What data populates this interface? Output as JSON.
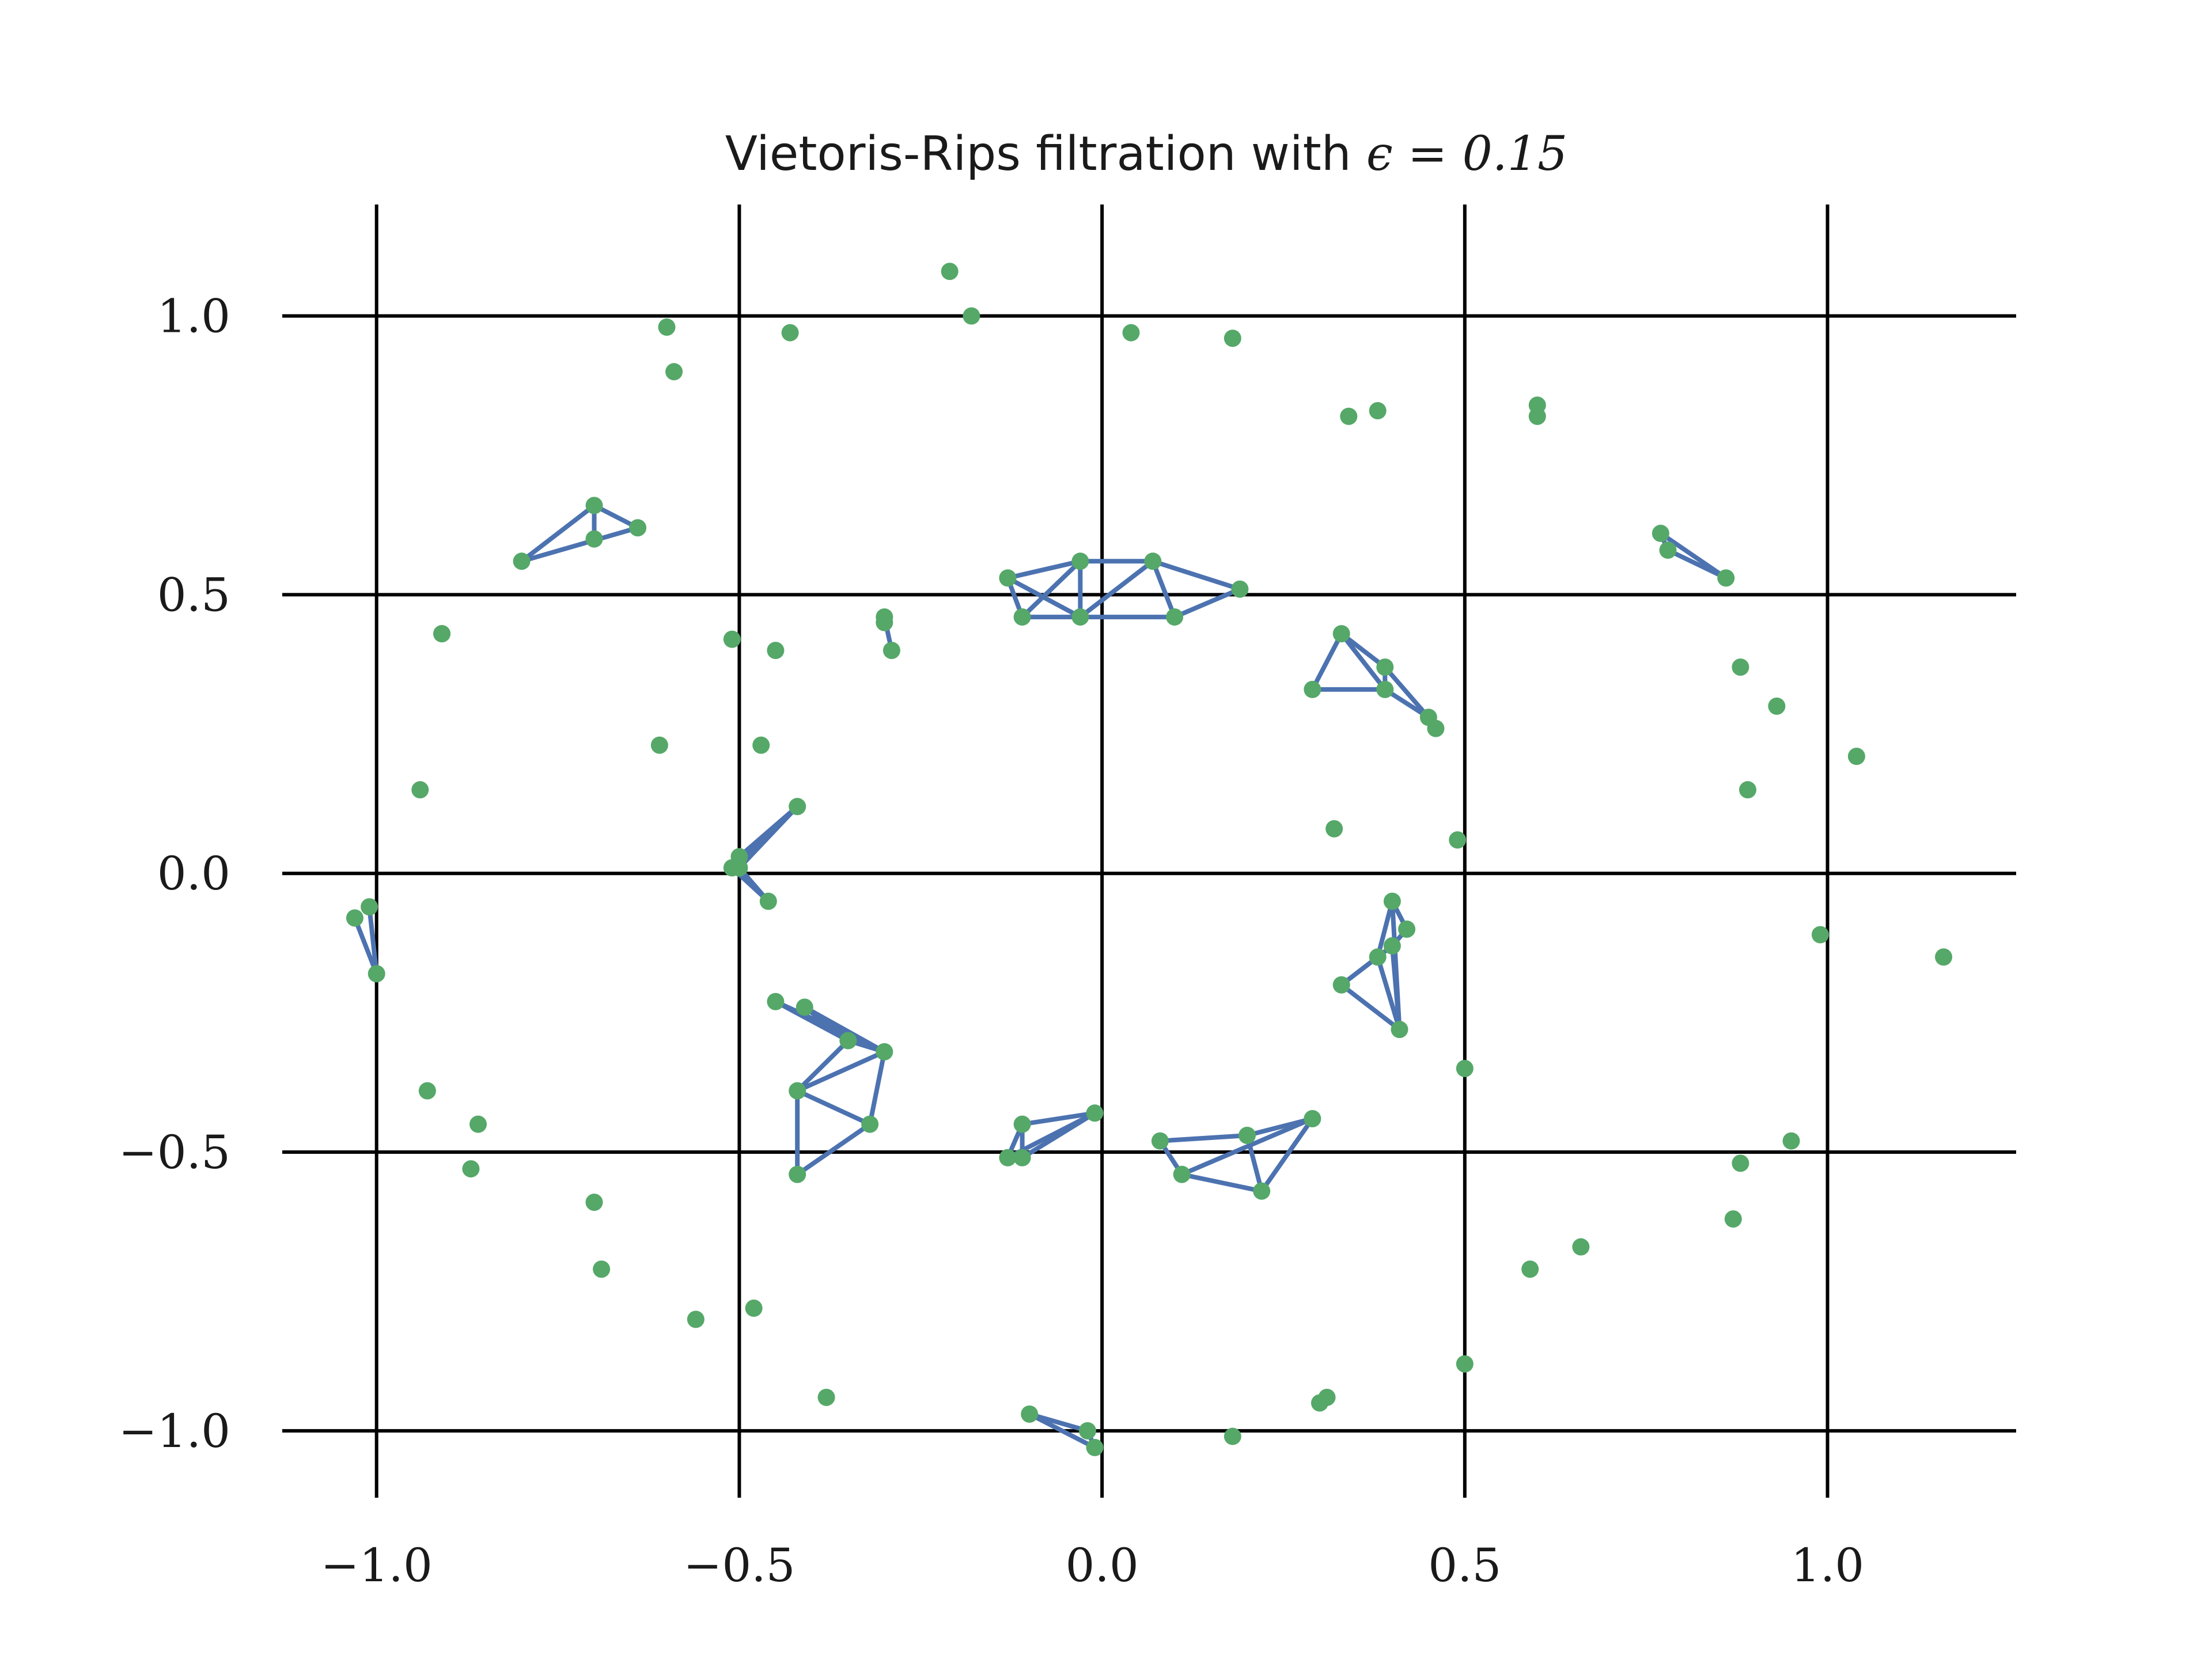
{
  "chart_data": {
    "type": "scatter",
    "title": "Vietoris-Rips filtration with ",
    "title_math": "ϵ = 0.15",
    "xlabel": "",
    "ylabel": "",
    "xlim": [
      -1.13,
      1.26
    ],
    "ylim": [
      -1.12,
      1.2
    ],
    "xticks": [
      -1.0,
      -0.5,
      0.0,
      0.5,
      1.0
    ],
    "yticks": [
      -1.0,
      -0.5,
      0.0,
      0.5,
      1.0
    ],
    "xtick_labels": [
      "−1.0",
      "−0.5",
      "0.0",
      "0.5",
      "1.0"
    ],
    "ytick_labels": [
      "−1.0",
      "−0.5",
      "0.0",
      "0.5",
      "1.0"
    ],
    "grid": true,
    "point_color": "#55a868",
    "edge_color": "#4c72b0",
    "points": [
      [
        -0.21,
        1.08
      ],
      [
        -0.18,
        1.0
      ],
      [
        -0.6,
        0.98
      ],
      [
        -0.59,
        0.9
      ],
      [
        -0.43,
        0.97
      ],
      [
        0.04,
        0.97
      ],
      [
        0.18,
        0.96
      ],
      [
        0.34,
        0.82
      ],
      [
        0.38,
        0.83
      ],
      [
        0.6,
        0.84
      ],
      [
        0.6,
        0.82
      ],
      [
        -0.7,
        0.66
      ],
      [
        -0.64,
        0.62
      ],
      [
        -0.7,
        0.6
      ],
      [
        -0.8,
        0.56
      ],
      [
        -0.13,
        0.53
      ],
      [
        -0.03,
        0.56
      ],
      [
        0.07,
        0.56
      ],
      [
        0.19,
        0.51
      ],
      [
        -0.11,
        0.46
      ],
      [
        -0.03,
        0.46
      ],
      [
        0.1,
        0.46
      ],
      [
        0.77,
        0.61
      ],
      [
        0.78,
        0.58
      ],
      [
        0.86,
        0.53
      ],
      [
        -0.3,
        0.46
      ],
      [
        -0.3,
        0.45
      ],
      [
        -0.29,
        0.4
      ],
      [
        -0.91,
        0.43
      ],
      [
        -0.91,
        0.43
      ],
      [
        -0.51,
        0.42
      ],
      [
        -0.45,
        0.4
      ],
      [
        0.33,
        0.43
      ],
      [
        0.39,
        0.37
      ],
      [
        0.29,
        0.33
      ],
      [
        0.39,
        0.33
      ],
      [
        0.45,
        0.28
      ],
      [
        0.46,
        0.26
      ],
      [
        0.88,
        0.37
      ],
      [
        0.93,
        0.3
      ],
      [
        1.04,
        0.21
      ],
      [
        0.89,
        0.15
      ],
      [
        -0.61,
        0.23
      ],
      [
        -0.47,
        0.23
      ],
      [
        -0.94,
        0.15
      ],
      [
        -0.42,
        0.12
      ],
      [
        -0.5,
        0.03
      ],
      [
        -0.5,
        0.01
      ],
      [
        -0.51,
        0.01
      ],
      [
        -0.46,
        -0.05
      ],
      [
        0.32,
        0.08
      ],
      [
        0.49,
        0.06
      ],
      [
        -1.03,
        -0.08
      ],
      [
        -1.01,
        -0.06
      ],
      [
        -1.0,
        -0.18
      ],
      [
        0.4,
        -0.05
      ],
      [
        0.42,
        -0.1
      ],
      [
        0.4,
        -0.13
      ],
      [
        0.38,
        -0.15
      ],
      [
        0.33,
        -0.2
      ],
      [
        0.41,
        -0.28
      ],
      [
        0.99,
        -0.11
      ],
      [
        1.16,
        -0.15
      ],
      [
        -0.45,
        -0.23
      ],
      [
        -0.41,
        -0.24
      ],
      [
        -0.35,
        -0.3
      ],
      [
        -0.3,
        -0.32
      ],
      [
        -0.42,
        -0.39
      ],
      [
        -0.32,
        -0.45
      ],
      [
        -0.42,
        -0.54
      ],
      [
        0.5,
        -0.35
      ],
      [
        -0.93,
        -0.39
      ],
      [
        -0.86,
        -0.45
      ],
      [
        -0.87,
        -0.53
      ],
      [
        -0.11,
        -0.45
      ],
      [
        -0.01,
        -0.43
      ],
      [
        -0.13,
        -0.51
      ],
      [
        -0.11,
        -0.51
      ],
      [
        0.08,
        -0.48
      ],
      [
        0.2,
        -0.47
      ],
      [
        0.29,
        -0.44
      ],
      [
        0.11,
        -0.54
      ],
      [
        0.22,
        -0.57
      ],
      [
        0.95,
        -0.48
      ],
      [
        0.88,
        -0.52
      ],
      [
        0.87,
        -0.62
      ],
      [
        -0.7,
        -0.59
      ],
      [
        -0.69,
        -0.71
      ],
      [
        -0.56,
        -0.8
      ],
      [
        -0.48,
        -0.78
      ],
      [
        0.66,
        -0.67
      ],
      [
        0.59,
        -0.71
      ],
      [
        0.5,
        -0.88
      ],
      [
        -0.38,
        -0.94
      ],
      [
        0.3,
        -0.95
      ],
      [
        0.31,
        -0.94
      ],
      [
        -0.1,
        -0.97
      ],
      [
        -0.02,
        -1.0
      ],
      [
        -0.01,
        -1.03
      ],
      [
        0.18,
        -1.01
      ]
    ],
    "edges": [
      [
        [
          -0.8,
          0.56
        ],
        [
          -0.7,
          0.66
        ]
      ],
      [
        [
          -0.8,
          0.56
        ],
        [
          -0.64,
          0.62
        ]
      ],
      [
        [
          -0.7,
          0.66
        ],
        [
          -0.64,
          0.62
        ]
      ],
      [
        [
          -0.7,
          0.66
        ],
        [
          -0.7,
          0.6
        ]
      ],
      [
        [
          -0.13,
          0.53
        ],
        [
          -0.03,
          0.56
        ]
      ],
      [
        [
          -0.13,
          0.53
        ],
        [
          -0.11,
          0.46
        ]
      ],
      [
        [
          -0.13,
          0.53
        ],
        [
          -0.03,
          0.46
        ]
      ],
      [
        [
          -0.03,
          0.56
        ],
        [
          0.07,
          0.56
        ]
      ],
      [
        [
          -0.03,
          0.56
        ],
        [
          -0.03,
          0.46
        ]
      ],
      [
        [
          -0.03,
          0.56
        ],
        [
          -0.11,
          0.46
        ]
      ],
      [
        [
          0.07,
          0.56
        ],
        [
          0.19,
          0.51
        ]
      ],
      [
        [
          0.07,
          0.56
        ],
        [
          -0.03,
          0.46
        ]
      ],
      [
        [
          0.07,
          0.56
        ],
        [
          0.1,
          0.46
        ]
      ],
      [
        [
          0.19,
          0.51
        ],
        [
          0.1,
          0.46
        ]
      ],
      [
        [
          -0.11,
          0.46
        ],
        [
          -0.03,
          0.46
        ]
      ],
      [
        [
          -0.03,
          0.46
        ],
        [
          0.1,
          0.46
        ]
      ],
      [
        [
          0.77,
          0.61
        ],
        [
          0.86,
          0.53
        ]
      ],
      [
        [
          0.78,
          0.58
        ],
        [
          0.86,
          0.53
        ]
      ],
      [
        [
          0.77,
          0.61
        ],
        [
          0.78,
          0.58
        ]
      ],
      [
        [
          -0.3,
          0.46
        ],
        [
          -0.29,
          0.4
        ]
      ],
      [
        [
          0.33,
          0.43
        ],
        [
          0.29,
          0.33
        ]
      ],
      [
        [
          0.33,
          0.43
        ],
        [
          0.39,
          0.37
        ]
      ],
      [
        [
          0.33,
          0.43
        ],
        [
          0.39,
          0.33
        ]
      ],
      [
        [
          0.29,
          0.33
        ],
        [
          0.39,
          0.33
        ]
      ],
      [
        [
          0.39,
          0.37
        ],
        [
          0.39,
          0.33
        ]
      ],
      [
        [
          0.39,
          0.37
        ],
        [
          0.45,
          0.28
        ]
      ],
      [
        [
          0.39,
          0.33
        ],
        [
          0.45,
          0.28
        ]
      ],
      [
        [
          0.45,
          0.28
        ],
        [
          0.46,
          0.26
        ]
      ],
      [
        [
          -0.42,
          0.12
        ],
        [
          -0.5,
          0.03
        ]
      ],
      [
        [
          -0.42,
          0.12
        ],
        [
          -0.5,
          0.01
        ]
      ],
      [
        [
          -0.42,
          0.12
        ],
        [
          -0.51,
          0.01
        ]
      ],
      [
        [
          -0.5,
          0.03
        ],
        [
          -0.51,
          0.01
        ]
      ],
      [
        [
          -0.5,
          0.01
        ],
        [
          -0.46,
          -0.05
        ]
      ],
      [
        [
          -0.51,
          0.01
        ],
        [
          -0.46,
          -0.05
        ]
      ],
      [
        [
          -1.03,
          -0.08
        ],
        [
          -1.0,
          -0.18
        ]
      ],
      [
        [
          -1.01,
          -0.06
        ],
        [
          -1.0,
          -0.18
        ]
      ],
      [
        [
          0.4,
          -0.05
        ],
        [
          0.42,
          -0.1
        ]
      ],
      [
        [
          0.4,
          -0.05
        ],
        [
          0.38,
          -0.15
        ]
      ],
      [
        [
          0.4,
          -0.05
        ],
        [
          0.41,
          -0.28
        ]
      ],
      [
        [
          0.42,
          -0.1
        ],
        [
          0.4,
          -0.13
        ]
      ],
      [
        [
          0.4,
          -0.13
        ],
        [
          0.38,
          -0.15
        ]
      ],
      [
        [
          0.4,
          -0.13
        ],
        [
          0.41,
          -0.28
        ]
      ],
      [
        [
          0.38,
          -0.15
        ],
        [
          0.33,
          -0.2
        ]
      ],
      [
        [
          0.33,
          -0.2
        ],
        [
          0.41,
          -0.28
        ]
      ],
      [
        [
          0.4,
          -0.13
        ],
        [
          0.33,
          -0.2
        ]
      ],
      [
        [
          0.38,
          -0.15
        ],
        [
          0.41,
          -0.28
        ]
      ],
      [
        [
          -0.45,
          -0.23
        ],
        [
          -0.35,
          -0.3
        ]
      ],
      [
        [
          -0.45,
          -0.23
        ],
        [
          -0.3,
          -0.32
        ]
      ],
      [
        [
          -0.41,
          -0.24
        ],
        [
          -0.3,
          -0.32
        ]
      ],
      [
        [
          -0.41,
          -0.24
        ],
        [
          -0.35,
          -0.3
        ]
      ],
      [
        [
          -0.35,
          -0.3
        ],
        [
          -0.3,
          -0.32
        ]
      ],
      [
        [
          -0.35,
          -0.3
        ],
        [
          -0.42,
          -0.39
        ]
      ],
      [
        [
          -0.3,
          -0.32
        ],
        [
          -0.42,
          -0.39
        ]
      ],
      [
        [
          -0.3,
          -0.32
        ],
        [
          -0.32,
          -0.45
        ]
      ],
      [
        [
          -0.42,
          -0.39
        ],
        [
          -0.32,
          -0.45
        ]
      ],
      [
        [
          -0.42,
          -0.39
        ],
        [
          -0.42,
          -0.54
        ]
      ],
      [
        [
          -0.32,
          -0.45
        ],
        [
          -0.42,
          -0.54
        ]
      ],
      [
        [
          -0.11,
          -0.45
        ],
        [
          -0.01,
          -0.43
        ]
      ],
      [
        [
          -0.11,
          -0.45
        ],
        [
          -0.13,
          -0.51
        ]
      ],
      [
        [
          -0.11,
          -0.45
        ],
        [
          -0.11,
          -0.51
        ]
      ],
      [
        [
          -0.01,
          -0.43
        ],
        [
          -0.13,
          -0.51
        ]
      ],
      [
        [
          -0.01,
          -0.43
        ],
        [
          -0.11,
          -0.51
        ]
      ],
      [
        [
          -0.13,
          -0.51
        ],
        [
          -0.11,
          -0.51
        ]
      ],
      [
        [
          0.08,
          -0.48
        ],
        [
          0.2,
          -0.47
        ]
      ],
      [
        [
          0.08,
          -0.48
        ],
        [
          0.11,
          -0.54
        ]
      ],
      [
        [
          0.2,
          -0.47
        ],
        [
          0.29,
          -0.44
        ]
      ],
      [
        [
          0.29,
          -0.44
        ],
        [
          0.11,
          -0.54
        ]
      ],
      [
        [
          0.29,
          -0.44
        ],
        [
          0.22,
          -0.57
        ]
      ],
      [
        [
          0.2,
          -0.47
        ],
        [
          0.22,
          -0.57
        ]
      ],
      [
        [
          0.11,
          -0.54
        ],
        [
          0.22,
          -0.57
        ]
      ],
      [
        [
          -0.1,
          -0.97
        ],
        [
          -0.02,
          -1.0
        ]
      ],
      [
        [
          -0.1,
          -0.97
        ],
        [
          -0.01,
          -1.03
        ]
      ],
      [
        [
          -0.02,
          -1.0
        ],
        [
          -0.01,
          -1.03
        ]
      ]
    ]
  }
}
